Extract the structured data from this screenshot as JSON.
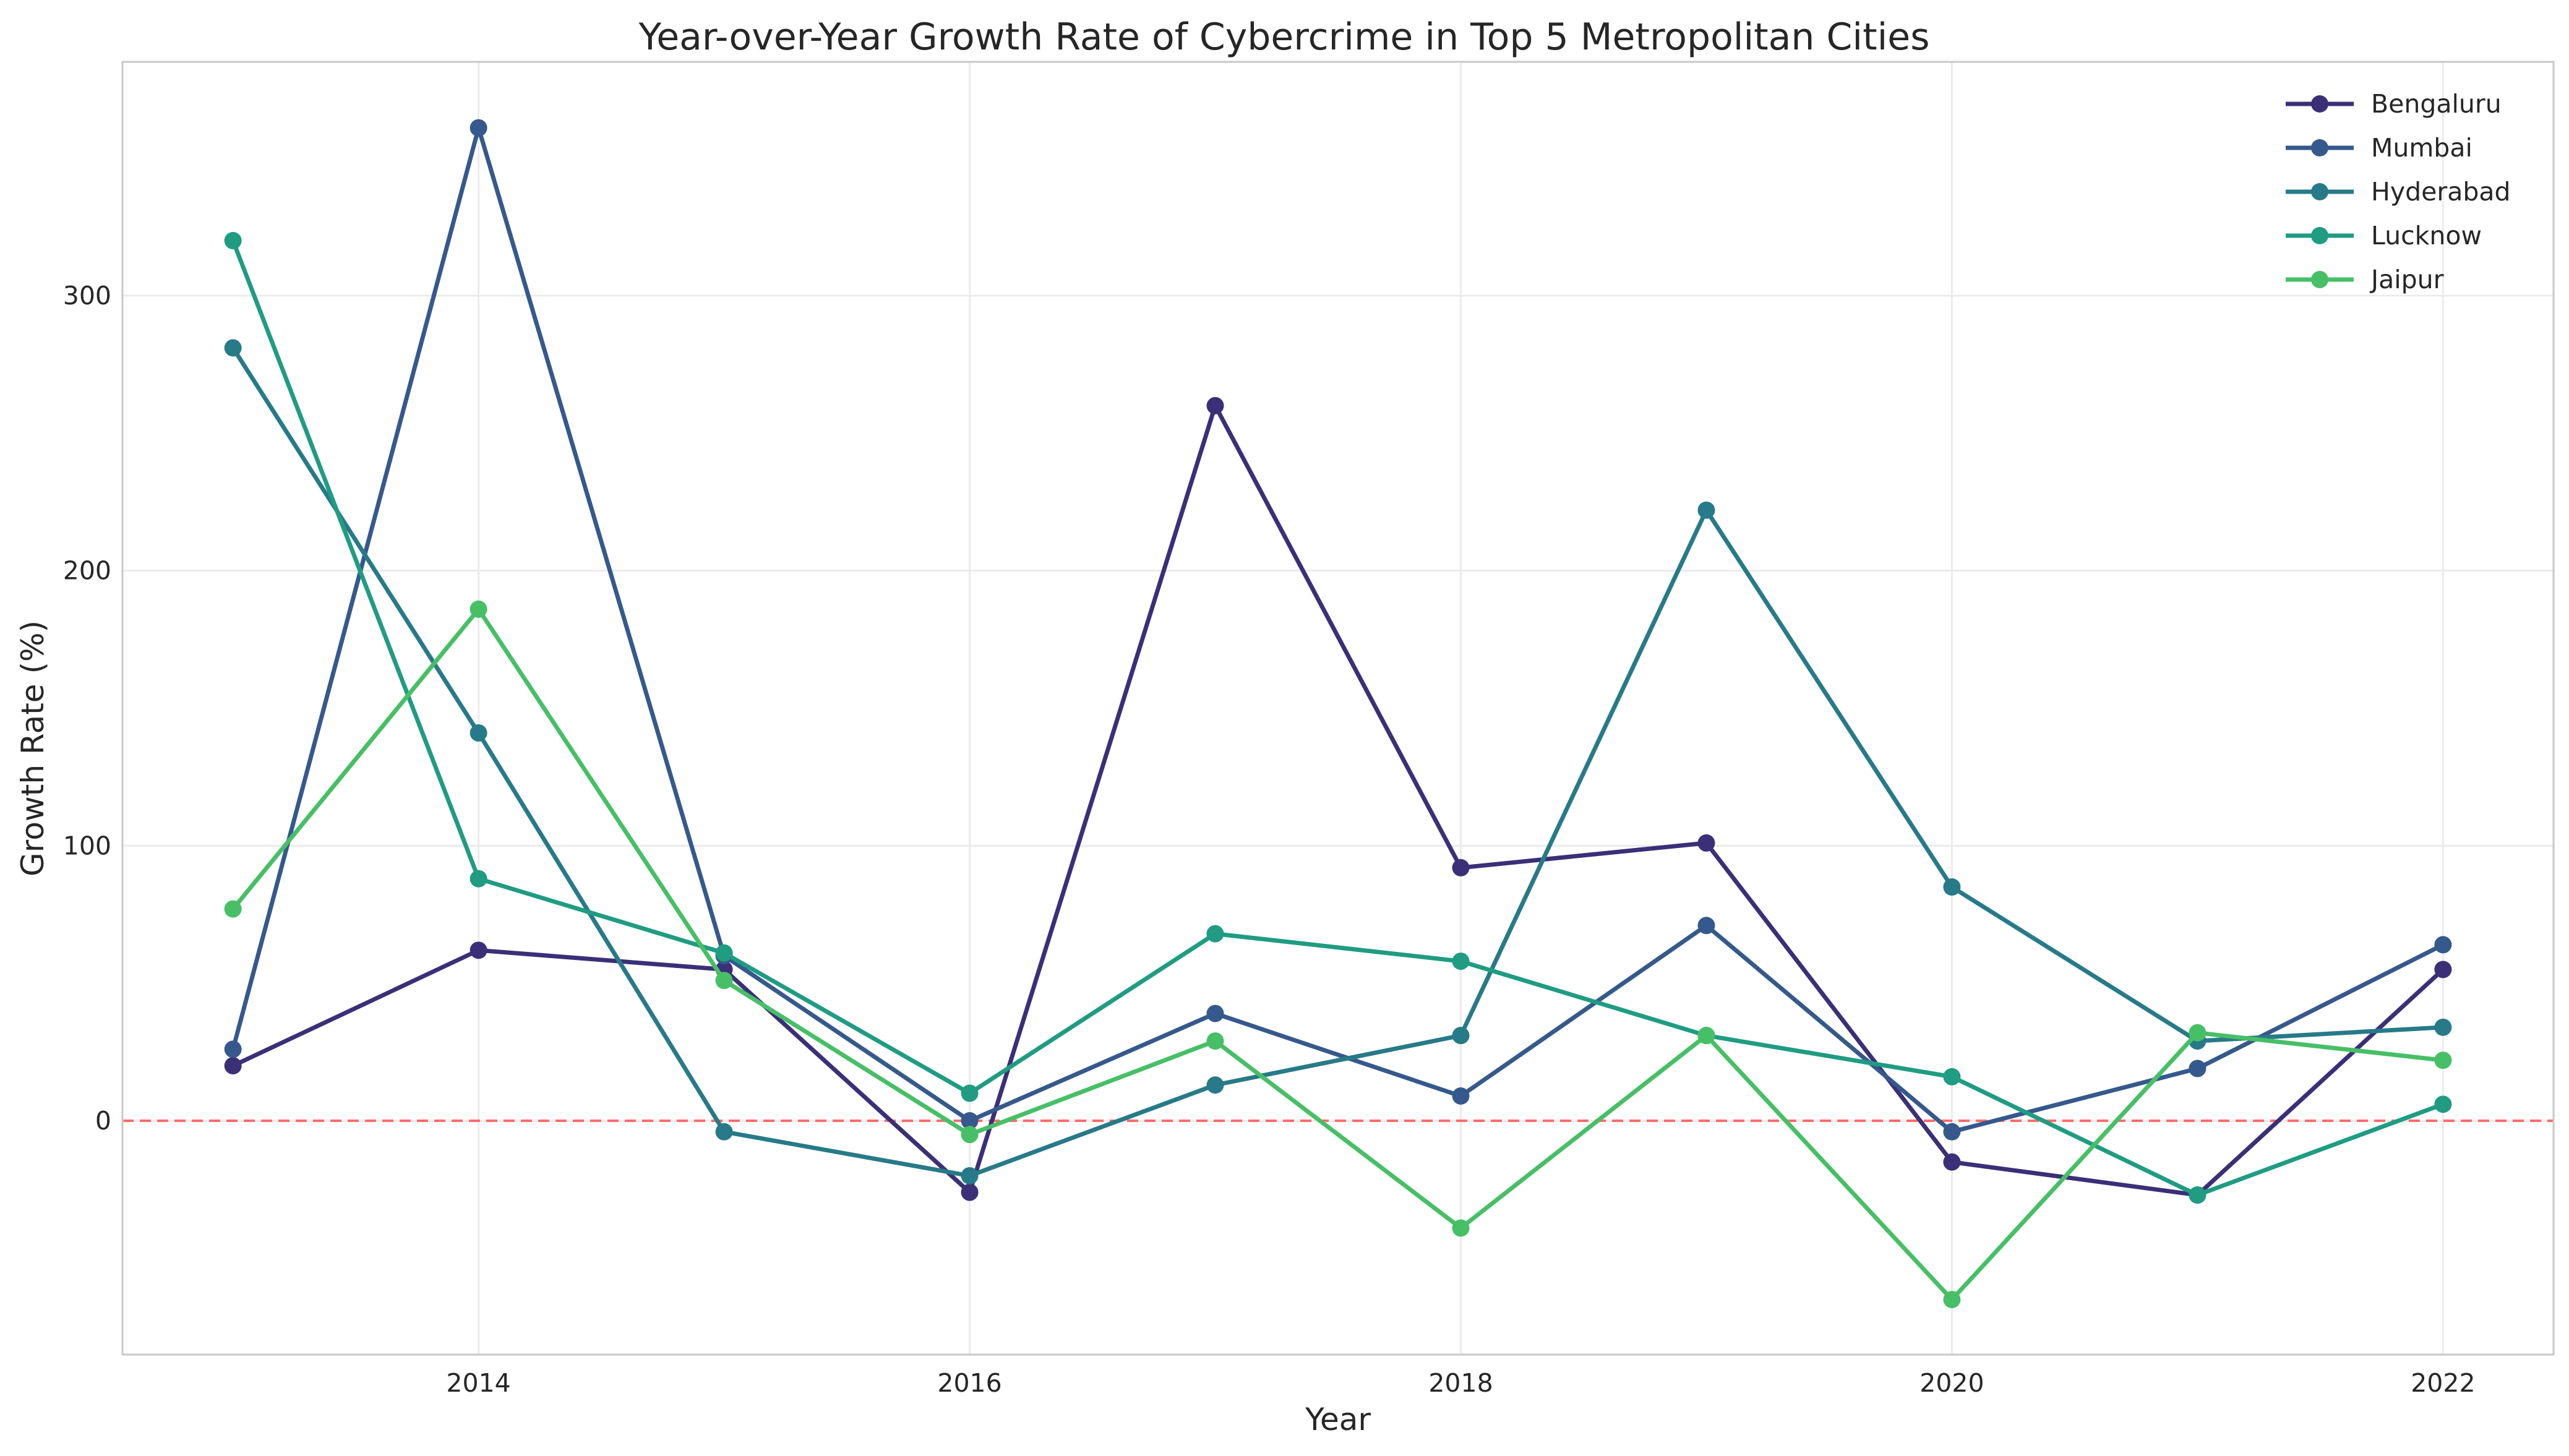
{
  "chart_data": {
    "type": "line",
    "title": "Year-over-Year Growth Rate of Cybercrime in Top 5 Metropolitan Cities",
    "xlabel": "Year",
    "ylabel": "Growth Rate (%)",
    "x": [
      2013,
      2014,
      2015,
      2016,
      2017,
      2018,
      2019,
      2020,
      2021,
      2022
    ],
    "xlim": [
      2012.55,
      2022.45
    ],
    "ylim": [
      -85,
      385
    ],
    "xticks": [
      2014,
      2016,
      2018,
      2020,
      2022
    ],
    "yticks": [
      0,
      100,
      200,
      300
    ],
    "grid": true,
    "legend_position": "top-right",
    "reference_line": {
      "y": 0,
      "color": "#ff6b6b",
      "style": "dashed"
    },
    "series": [
      {
        "name": "Bengaluru",
        "color": "#3b2f78",
        "values": [
          20,
          62,
          55,
          -26,
          260,
          92,
          101,
          -15,
          -27,
          55
        ]
      },
      {
        "name": "Mumbai",
        "color": "#35598c",
        "values": [
          26,
          361,
          60,
          0,
          39,
          9,
          71,
          -4,
          19,
          64
        ]
      },
      {
        "name": "Hyderabad",
        "color": "#277a88",
        "values": [
          281,
          141,
          -4,
          -20,
          13,
          31,
          222,
          85,
          29,
          34
        ]
      },
      {
        "name": "Lucknow",
        "color": "#1f9c82",
        "values": [
          320,
          88,
          61,
          10,
          68,
          58,
          31,
          16,
          -27,
          6
        ]
      },
      {
        "name": "Jaipur",
        "color": "#47bf66",
        "values": [
          77,
          186,
          51,
          -5,
          29,
          -39,
          31,
          -65,
          32,
          22
        ]
      }
    ]
  }
}
